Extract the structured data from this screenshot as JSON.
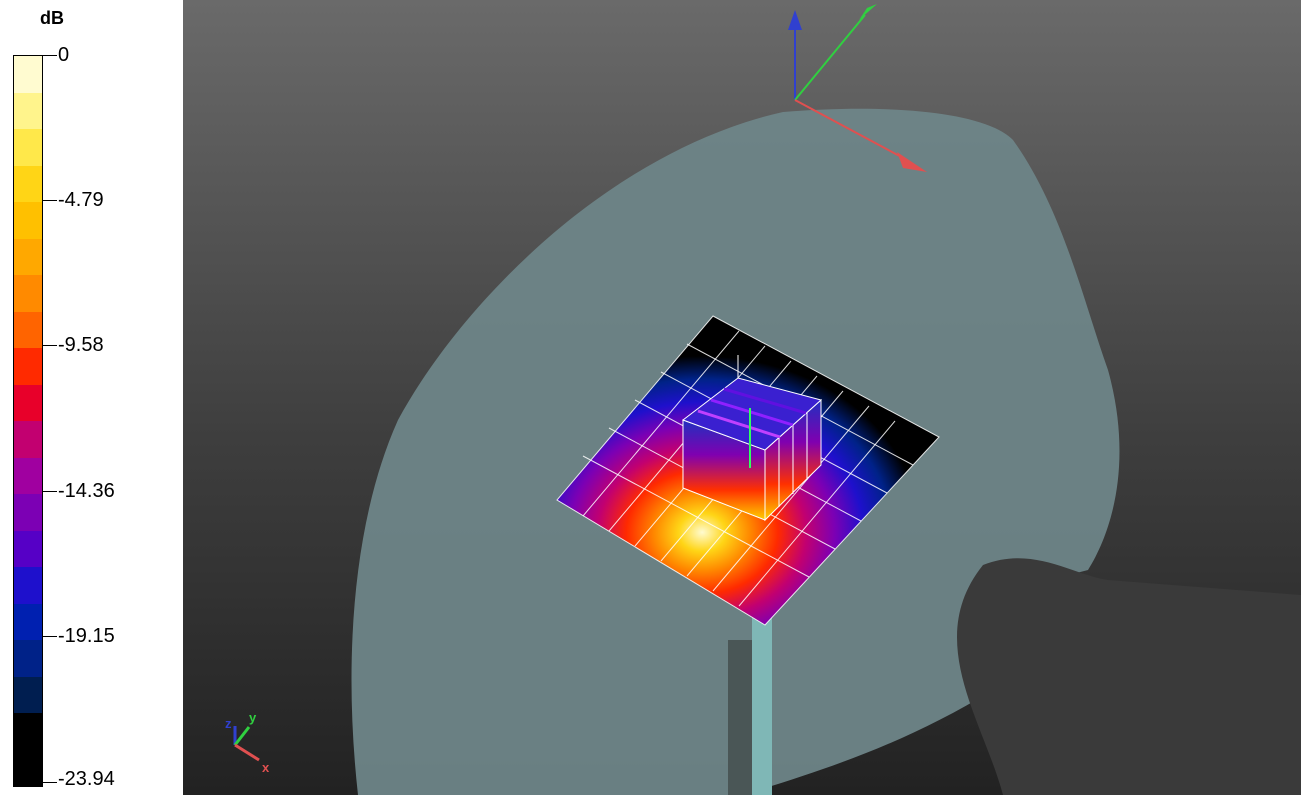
{
  "legend": {
    "unit": "dB",
    "ticks": [
      "0",
      "-4.79",
      "-9.58",
      "-14.36",
      "-19.15",
      "-23.94"
    ],
    "band_colors": [
      "#fffbd0",
      "#fff48c",
      "#ffe84a",
      "#ffd516",
      "#ffc000",
      "#ffa800",
      "#ff8a00",
      "#ff6400",
      "#ff2a00",
      "#e8002a",
      "#c20070",
      "#a000a0",
      "#7c00b4",
      "#5600c6",
      "#1e10cc",
      "#0020b0",
      "#002288",
      "#001e50",
      "#000000",
      "#000000"
    ]
  },
  "viewport": {
    "axis_labels": {
      "x": "x",
      "y": "y",
      "z": "z"
    },
    "colors": {
      "head": "#6e8588",
      "hole": "#3a3a3a",
      "rod": "#7fb7b6",
      "x_axis": "#e05050",
      "y_axis": "#30d040",
      "z_axis": "#3040d0"
    }
  }
}
